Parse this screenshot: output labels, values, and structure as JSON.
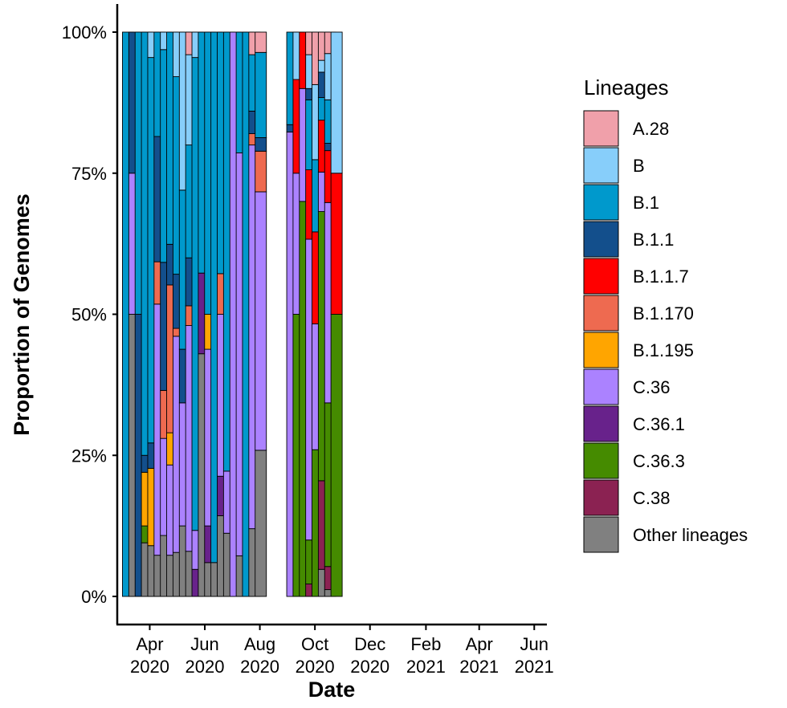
{
  "chart_data": {
    "type": "bar",
    "stacked": true,
    "normalized": true,
    "xlabel": "Date",
    "ylabel": "Proportion of Genomes",
    "ylim": [
      0,
      1
    ],
    "y_ticks": [
      "0%",
      "25%",
      "50%",
      "75%",
      "100%"
    ],
    "x_ticks": [
      {
        "month": "Apr",
        "year": "2020",
        "at": "2020-04-01"
      },
      {
        "month": "Jun",
        "year": "2020",
        "at": "2020-06-01"
      },
      {
        "month": "Aug",
        "year": "2020",
        "at": "2020-08-01"
      },
      {
        "month": "Oct",
        "year": "2020",
        "at": "2020-10-01"
      },
      {
        "month": "Dec",
        "year": "2020",
        "at": "2020-12-01"
      },
      {
        "month": "Feb",
        "year": "2021",
        "at": "2021-02-01"
      },
      {
        "month": "Apr",
        "year": "2021",
        "at": "2021-04-01"
      },
      {
        "month": "Jun",
        "year": "2021",
        "at": "2021-06-01"
      }
    ],
    "x_range": [
      "2020-02-25",
      "2021-06-15"
    ],
    "legend_title": "Lineages",
    "legend_position": "right",
    "lineages": [
      {
        "name": "A.28",
        "color": "#F0A0AA"
      },
      {
        "name": "B",
        "color": "#87CEFA"
      },
      {
        "name": "B.1",
        "color": "#0099CC"
      },
      {
        "name": "B.1.1",
        "color": "#134F8C"
      },
      {
        "name": "B.1.1.7",
        "color": "#FF0000"
      },
      {
        "name": "B.1.170",
        "color": "#EE6A50"
      },
      {
        "name": "B.1.195",
        "color": "#FFA500"
      },
      {
        "name": "C.36",
        "color": "#AB82FF"
      },
      {
        "name": "C.36.1",
        "color": "#68228B"
      },
      {
        "name": "C.36.3",
        "color": "#458B00"
      },
      {
        "name": "C.38",
        "color": "#8B2252"
      },
      {
        "name": "Other lineages",
        "color": "#808080"
      }
    ],
    "bars": [
      {
        "week": "2020-03-08",
        "segments": [
          [
            "B.1",
            1.0
          ]
        ]
      },
      {
        "week": "2020-03-15",
        "segments": [
          [
            "Other lineages",
            0.5
          ],
          [
            "C.36",
            0.25
          ],
          [
            "B.1.1",
            0.25
          ]
        ]
      },
      {
        "week": "2020-03-22",
        "segments": [
          [
            "B.1.1",
            0.5
          ],
          [
            "B.1",
            0.5
          ]
        ]
      },
      {
        "week": "2020-03-29",
        "segments": [
          [
            "Other lineages",
            0.095
          ],
          [
            "C.36.3",
            0.03
          ],
          [
            "B.1.195",
            0.095
          ],
          [
            "B.1.1",
            0.03
          ],
          [
            "B.1",
            0.75
          ]
        ]
      },
      {
        "week": "2020-04-05",
        "segments": [
          [
            "Other lineages",
            0.09
          ],
          [
            "B.1.195",
            0.137
          ],
          [
            "B.1.1",
            0.045
          ],
          [
            "B.1",
            0.683
          ],
          [
            "B",
            0.045
          ]
        ]
      },
      {
        "week": "2020-04-12",
        "segments": [
          [
            "Other lineages",
            0.073
          ],
          [
            "C.36",
            0.445
          ],
          [
            "B.1.170",
            0.075
          ],
          [
            "B.1.1",
            0.222
          ],
          [
            "B.1",
            0.185
          ]
        ]
      },
      {
        "week": "2020-04-19",
        "segments": [
          [
            "Other lineages",
            0.108
          ],
          [
            "C.36",
            0.172
          ],
          [
            "B.1.170",
            0.085
          ],
          [
            "B.1.1",
            0.227
          ],
          [
            "B.1",
            0.377
          ],
          [
            "B",
            0.031
          ]
        ]
      },
      {
        "week": "2020-04-26",
        "segments": [
          [
            "Other lineages",
            0.073
          ],
          [
            "C.36",
            0.16
          ],
          [
            "B.1.195",
            0.057
          ],
          [
            "B.1.170",
            0.262
          ],
          [
            "B.1.1",
            0.072
          ],
          [
            "B.1",
            0.376
          ]
        ]
      },
      {
        "week": "2020-05-03",
        "segments": [
          [
            "Other lineages",
            0.078
          ],
          [
            "C.36",
            0.383
          ],
          [
            "B.1.170",
            0.014
          ],
          [
            "B.1.1",
            0.096
          ],
          [
            "B.1",
            0.35
          ],
          [
            "B",
            0.079
          ]
        ]
      },
      {
        "week": "2020-05-10",
        "segments": [
          [
            "Other lineages",
            0.125
          ],
          [
            "C.36",
            0.218
          ],
          [
            "B.1.1",
            0.095
          ],
          [
            "B.1",
            0.282
          ],
          [
            "B",
            0.28
          ]
        ]
      },
      {
        "week": "2020-05-17",
        "segments": [
          [
            "Other lineages",
            0.08
          ],
          [
            "C.36",
            0.4
          ],
          [
            "B.1.170",
            0.035
          ],
          [
            "B.1.1",
            0.085
          ],
          [
            "B.1",
            0.2
          ],
          [
            "B",
            0.16
          ],
          [
            "A.28",
            0.04
          ]
        ]
      },
      {
        "week": "2020-05-24",
        "segments": [
          [
            "C.36.1",
            0.048
          ],
          [
            "C.36",
            0.069
          ],
          [
            "B.1",
            0.838
          ],
          [
            "B",
            0.045
          ]
        ]
      },
      {
        "week": "2020-05-31",
        "segments": [
          [
            "Other lineages",
            0.43
          ],
          [
            "C.36.1",
            0.143
          ],
          [
            "B.1",
            0.427
          ]
        ]
      },
      {
        "week": "2020-06-07",
        "segments": [
          [
            "Other lineages",
            0.06
          ],
          [
            "C.36.1",
            0.065
          ],
          [
            "C.36",
            0.313
          ],
          [
            "B.1.195",
            0.062
          ],
          [
            "B.1",
            0.5
          ]
        ]
      },
      {
        "week": "2020-06-14",
        "segments": [
          [
            "Other lineages",
            0.06
          ],
          [
            "B.1",
            0.94
          ]
        ]
      },
      {
        "week": "2020-06-21",
        "segments": [
          [
            "Other lineages",
            0.143
          ],
          [
            "C.36.1",
            0.07
          ],
          [
            "C.36",
            0.287
          ],
          [
            "B.1.170",
            0.072
          ],
          [
            "B.1",
            0.428
          ]
        ]
      },
      {
        "week": "2020-06-28",
        "segments": [
          [
            "Other lineages",
            0.112
          ],
          [
            "C.36",
            0.11
          ],
          [
            "B.1",
            0.778
          ]
        ]
      },
      {
        "week": "2020-07-05",
        "segments": [
          [
            "C.36",
            1.0
          ]
        ]
      },
      {
        "week": "2020-07-12",
        "segments": [
          [
            "Other lineages",
            0.072
          ],
          [
            "C.36",
            0.714
          ],
          [
            "B.1",
            0.214
          ]
        ]
      },
      {
        "week": "2020-07-19",
        "segments": [
          [
            "B.1",
            1.0
          ]
        ]
      },
      {
        "week": "2020-07-26",
        "segments": [
          [
            "Other lineages",
            0.12
          ],
          [
            "C.36",
            0.68
          ],
          [
            "B.1.170",
            0.02
          ],
          [
            "B.1.1",
            0.04
          ],
          [
            "B.1",
            0.1
          ],
          [
            "A.28",
            0.04
          ]
        ]
      },
      {
        "week": "2020-08-02",
        "segments": [
          [
            "Other lineages",
            0.259
          ],
          [
            "C.36",
            0.458
          ],
          [
            "B.1.170",
            0.072
          ],
          [
            "B.1.1",
            0.024
          ],
          [
            "B.1",
            0.151
          ],
          [
            "A.28",
            0.036
          ]
        ]
      },
      {
        "week": "2020-09-06",
        "segments": [
          [
            "C.36",
            0.823
          ],
          [
            "B.1.1",
            0.013
          ],
          [
            "B.1",
            0.164
          ]
        ]
      },
      {
        "week": "2020-09-13",
        "segments": [
          [
            "C.36.3",
            0.5
          ],
          [
            "C.36",
            0.25
          ],
          [
            "B.1.1.7",
            0.166
          ],
          [
            "B",
            0.084
          ]
        ]
      },
      {
        "week": "2020-09-20",
        "segments": [
          [
            "C.36.3",
            0.7
          ],
          [
            "C.36",
            0.2
          ],
          [
            "B.1.1.7",
            0.1
          ]
        ]
      },
      {
        "week": "2020-09-27",
        "segments": [
          [
            "C.38",
            0.022
          ],
          [
            "C.36.3",
            0.078
          ],
          [
            "C.36",
            0.533
          ],
          [
            "B.1.1.7",
            0.123
          ],
          [
            "B.1",
            0.124
          ],
          [
            "B.1.1",
            0.02
          ],
          [
            "B",
            0.06
          ],
          [
            "A.28",
            0.04
          ]
        ]
      },
      {
        "week": "2020-10-04",
        "segments": [
          [
            "C.36.3",
            0.26
          ],
          [
            "C.36",
            0.223
          ],
          [
            "B.1.1.7",
            0.163
          ],
          [
            "B.1",
            0.128
          ],
          [
            "B",
            0.133
          ],
          [
            "A.28",
            0.093
          ]
        ]
      },
      {
        "week": "2020-10-11",
        "segments": [
          [
            "Other lineages",
            0.048
          ],
          [
            "C.38",
            0.157
          ],
          [
            "C.36.3",
            0.477
          ],
          [
            "C.36",
            0.07
          ],
          [
            "B.1.1.7",
            0.092
          ],
          [
            "B.1",
            0.04
          ],
          [
            "B.1.1",
            0.045
          ],
          [
            "B",
            0.021
          ],
          [
            "A.28",
            0.05
          ]
        ]
      },
      {
        "week": "2020-10-18",
        "segments": [
          [
            "Other lineages",
            0.012
          ],
          [
            "C.38",
            0.041
          ],
          [
            "C.36.3",
            0.29
          ],
          [
            "C.36",
            0.355
          ],
          [
            "B.1.1.7",
            0.092
          ],
          [
            "B.1.1",
            0.013
          ],
          [
            "B.1",
            0.077
          ],
          [
            "B",
            0.082
          ],
          [
            "A.28",
            0.038
          ]
        ]
      },
      {
        "week": "2020-10-25",
        "segments": [
          [
            "C.36.3",
            0.5
          ],
          [
            "B.1.1.7",
            0.25
          ],
          [
            "B",
            0.25
          ]
        ]
      }
    ]
  }
}
